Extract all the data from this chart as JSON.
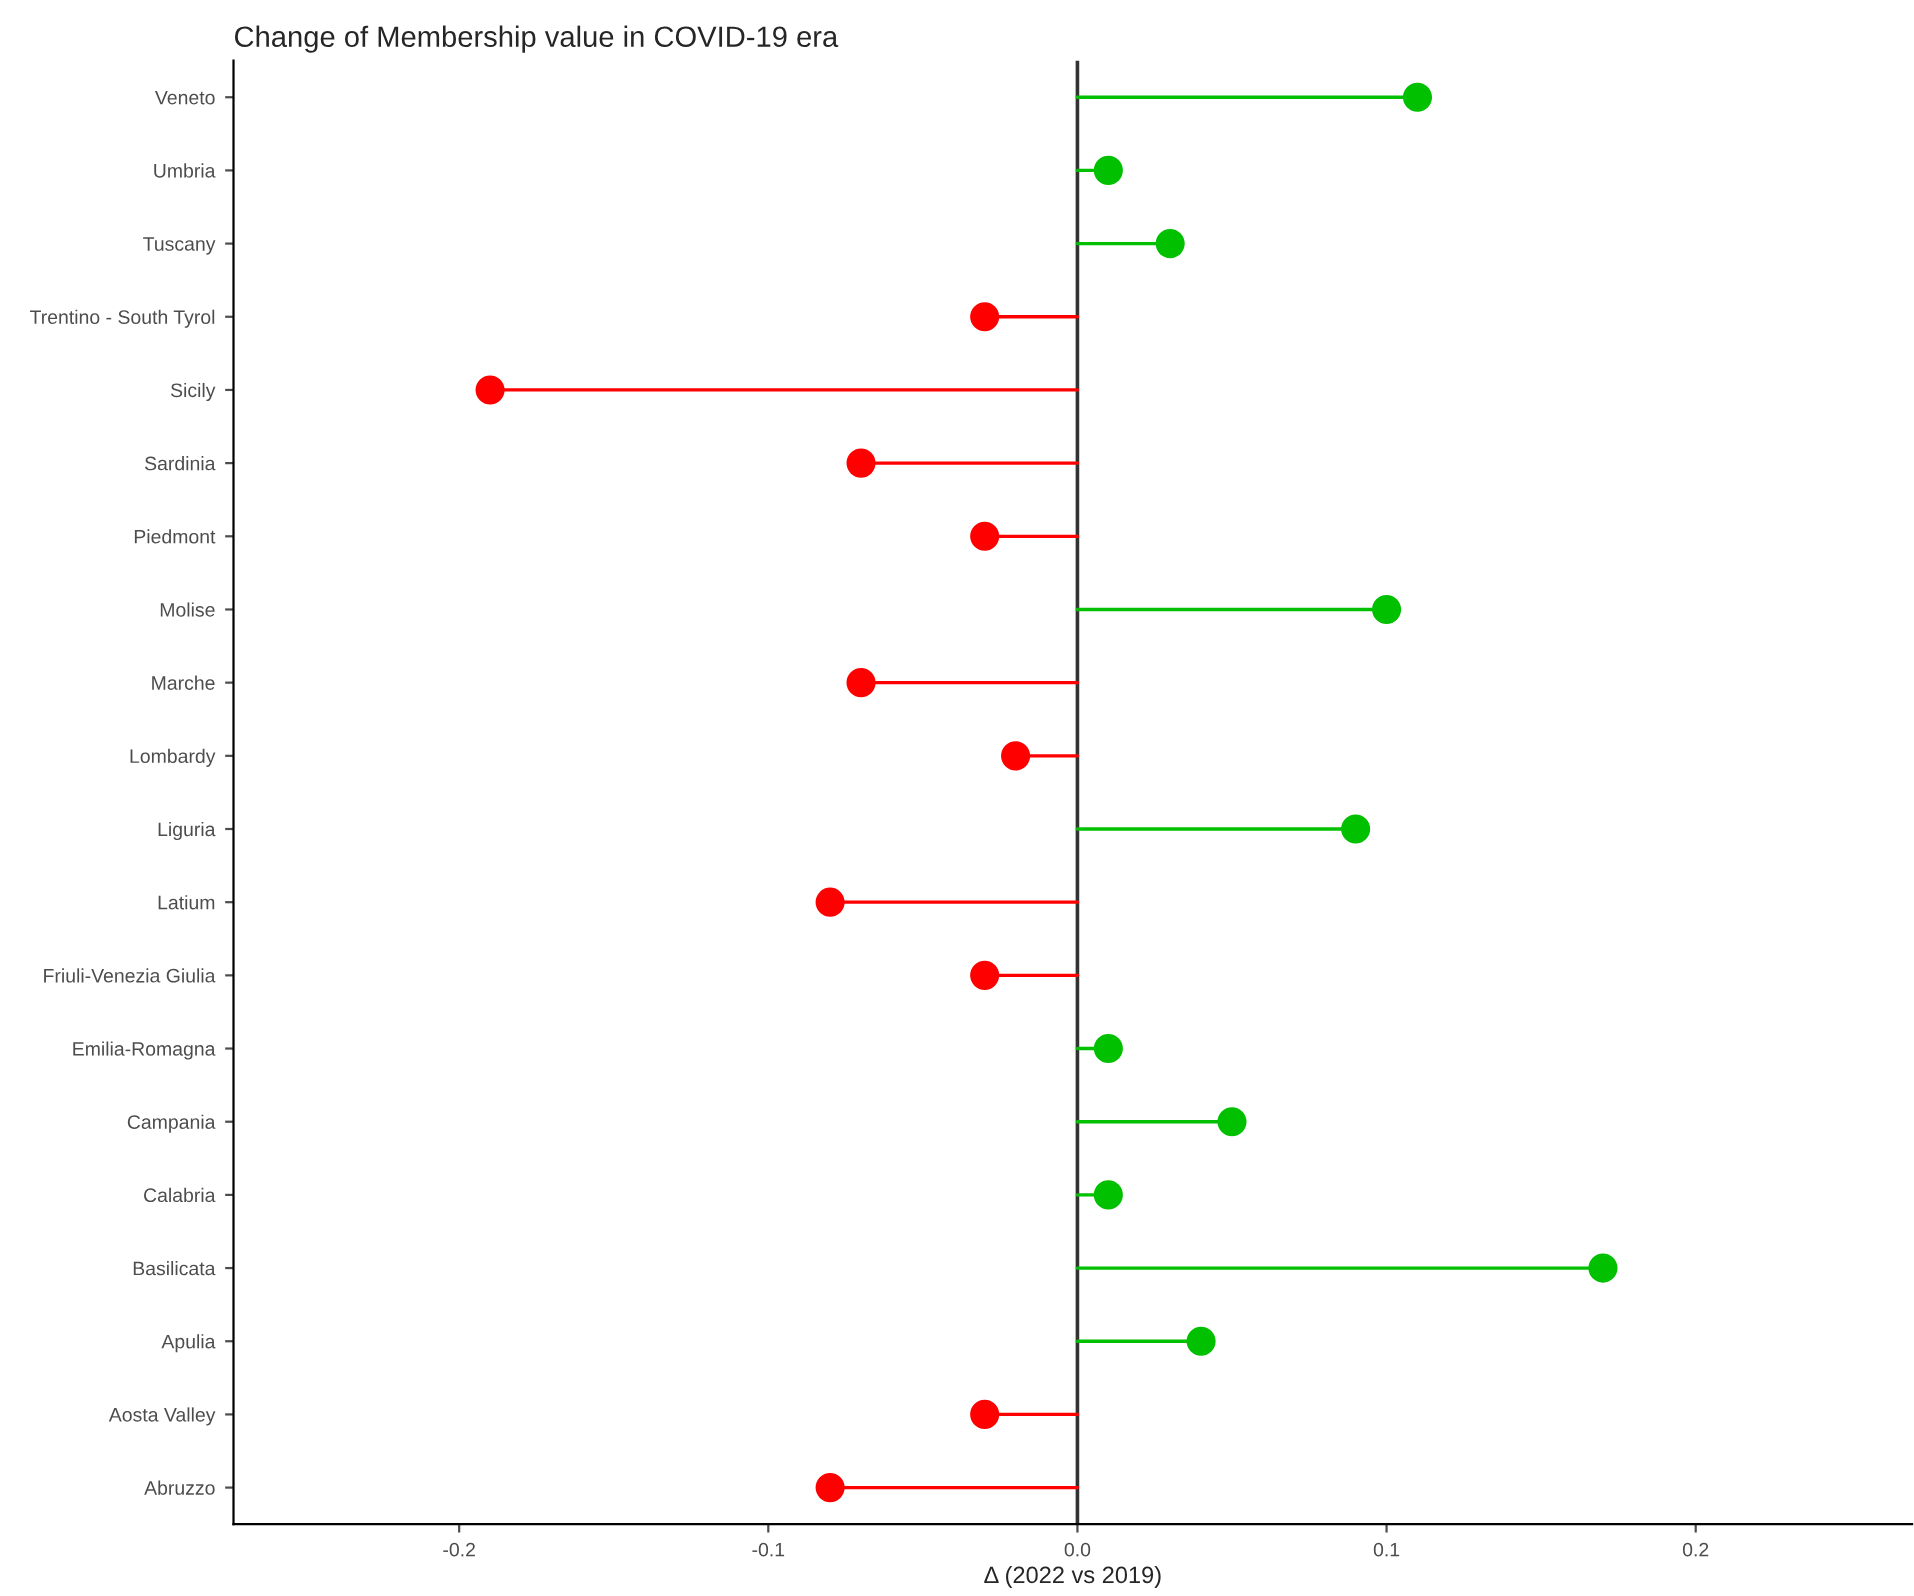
{
  "chart_data": {
    "type": "lollipop",
    "orientation": "horizontal",
    "title": "Change of Membership value in COVID-19 era",
    "xlabel": "Δ (2022 vs 2019)",
    "categories": [
      "Veneto",
      "Umbria",
      "Tuscany",
      "Trentino - South Tyrol",
      "Sicily",
      "Sardinia",
      "Piedmont",
      "Molise",
      "Marche",
      "Lombardy",
      "Liguria",
      "Latium",
      "Friuli-Venezia Giulia",
      "Emilia-Romagna",
      "Campania",
      "Calabria",
      "Basilicata",
      "Apulia",
      "Aosta Valley",
      "Abruzzo"
    ],
    "values": [
      0.11,
      0.01,
      0.03,
      -0.03,
      -0.19,
      -0.07,
      -0.03,
      0.1,
      -0.07,
      -0.02,
      0.09,
      -0.08,
      -0.03,
      0.01,
      0.05,
      0.01,
      0.17,
      0.04,
      -0.03,
      -0.08
    ],
    "colors": [
      "#00c000",
      "#00c000",
      "#00c000",
      "#ff0000",
      "#ff0000",
      "#ff0000",
      "#ff0000",
      "#00c000",
      "#ff0000",
      "#ff0000",
      "#00c000",
      "#ff0000",
      "#ff0000",
      "#00c000",
      "#00c000",
      "#00c000",
      "#00c000",
      "#00c000",
      "#ff0000",
      "#ff0000"
    ],
    "xlim": [
      -0.273,
      0.27
    ],
    "xticks": [
      -0.2,
      -0.1,
      {
        "value": 0,
        "label": "0.0"
      },
      0.1,
      0.2
    ],
    "ref_lines": [
      {
        "axis": "x",
        "value": 0,
        "color": "#333333"
      }
    ],
    "marker": "circle",
    "grid": false,
    "legend": false
  }
}
